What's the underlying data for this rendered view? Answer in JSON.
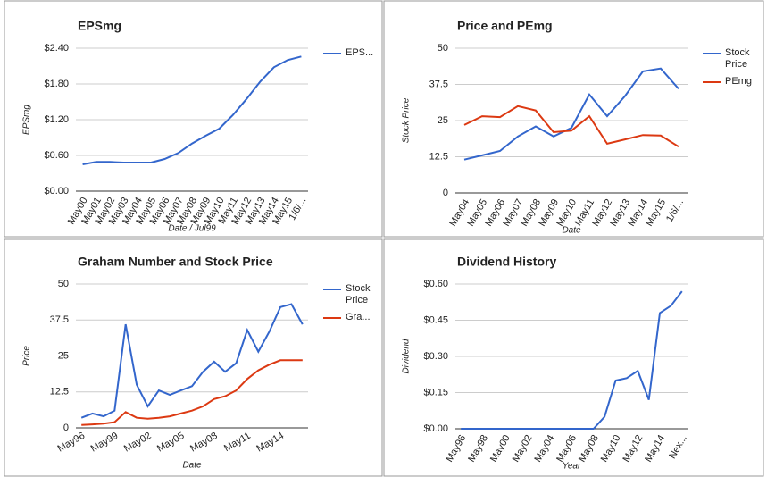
{
  "chart_data": [
    {
      "type": "line",
      "title": "EPSmg",
      "x_label": "Date / Jul99",
      "y_label": "EPSmg",
      "categories": [
        "May00",
        "May01",
        "May02",
        "May03",
        "May04",
        "May05",
        "May06",
        "May07",
        "May08",
        "May09",
        "May10",
        "May11",
        "May12",
        "May13",
        "May14",
        "May15",
        "1/6/..."
      ],
      "series": [
        {
          "name": "EPS...",
          "color": "#3366cc",
          "values": [
            0.45,
            0.49,
            0.49,
            0.48,
            0.48,
            0.48,
            0.54,
            0.64,
            0.8,
            0.93,
            1.05,
            1.28,
            1.55,
            1.84,
            2.08,
            2.2,
            2.26
          ]
        }
      ],
      "ylim": [
        0,
        2.4
      ],
      "yticks": [
        {
          "value": 0,
          "label": "$0.00"
        },
        {
          "value": 0.6,
          "label": "$0.60"
        },
        {
          "value": 1.2,
          "label": "$1.20"
        },
        {
          "value": 1.8,
          "label": "$1.80"
        },
        {
          "value": 2.4,
          "label": "$2.40"
        }
      ],
      "grid": true,
      "legend": "right"
    },
    {
      "type": "line",
      "title": "Price and PEmg",
      "x_label": "Date",
      "y_label": "Stock Price",
      "categories": [
        "May04",
        "May05",
        "May06",
        "May07",
        "May08",
        "May09",
        "May10",
        "May11",
        "May12",
        "May13",
        "May14",
        "May15",
        "1/6/..."
      ],
      "series": [
        {
          "name": "Stock Price",
          "color": "#3366cc",
          "values": [
            11.5,
            13,
            14.5,
            19.5,
            23,
            19.5,
            22.5,
            34,
            26.5,
            33.5,
            42,
            43,
            36
          ]
        },
        {
          "name": "PEmg",
          "color": "#dc3912",
          "values": [
            23.5,
            26.5,
            26.2,
            30,
            28.5,
            21,
            21.5,
            26.5,
            17,
            18.5,
            20,
            19.8,
            16
          ]
        }
      ],
      "ylim": [
        0,
        50
      ],
      "yticks": [
        0,
        12.5,
        25,
        37.5,
        50
      ],
      "grid": true,
      "legend": "right"
    },
    {
      "type": "line",
      "title": "Graham Number and Stock Price",
      "x_label": "Date",
      "y_label": "Price",
      "categories": [
        "May96",
        null,
        null,
        "May99",
        null,
        null,
        "May02",
        null,
        null,
        "May05",
        null,
        null,
        "May08",
        null,
        null,
        "May11",
        null,
        null,
        "May14",
        null,
        null
      ],
      "series": [
        {
          "name": "Stock Price",
          "color": "#3366cc",
          "values": [
            3.5,
            5,
            4,
            6,
            36,
            15,
            7.5,
            13,
            11.5,
            13,
            14.5,
            19.5,
            23,
            19.5,
            22.5,
            34,
            26.5,
            33.5,
            42,
            43,
            36
          ]
        },
        {
          "name": "Gra...",
          "color": "#dc3912",
          "values": [
            1,
            1.2,
            1.5,
            2,
            5.5,
            3.5,
            3.2,
            3.5,
            4,
            5,
            6,
            7.5,
            10,
            11,
            13,
            17,
            20,
            22,
            23.5,
            23.5,
            23.5
          ]
        }
      ],
      "ylim": [
        0,
        50
      ],
      "yticks": [
        0,
        12.5,
        25,
        37.5,
        50
      ],
      "grid": true,
      "legend": "right"
    },
    {
      "type": "line",
      "title": "Dividend History",
      "x_label": "Year",
      "y_label": "Dividend",
      "categories": [
        "May96",
        null,
        "May98",
        null,
        "May00",
        null,
        "May02",
        null,
        "May04",
        null,
        "May06",
        null,
        "May08",
        null,
        "May10",
        null,
        "May12",
        null,
        "May14",
        null,
        "Nex..."
      ],
      "series": [
        {
          "name": "Dividend",
          "color": "#3366cc",
          "values": [
            0,
            0,
            0,
            0,
            0,
            0,
            0,
            0,
            0,
            0,
            0,
            0,
            0,
            0.05,
            0.2,
            0.21,
            0.24,
            0.12,
            0.48,
            0.51,
            0.57
          ]
        }
      ],
      "ylim": [
        0,
        0.6
      ],
      "yticks": [
        {
          "value": 0,
          "label": "$0.00"
        },
        {
          "value": 0.15,
          "label": "$0.15"
        },
        {
          "value": 0.3,
          "label": "$0.30"
        },
        {
          "value": 0.45,
          "label": "$0.45"
        },
        {
          "value": 0.6,
          "label": "$0.60"
        }
      ],
      "grid": true,
      "legend": "none"
    }
  ]
}
